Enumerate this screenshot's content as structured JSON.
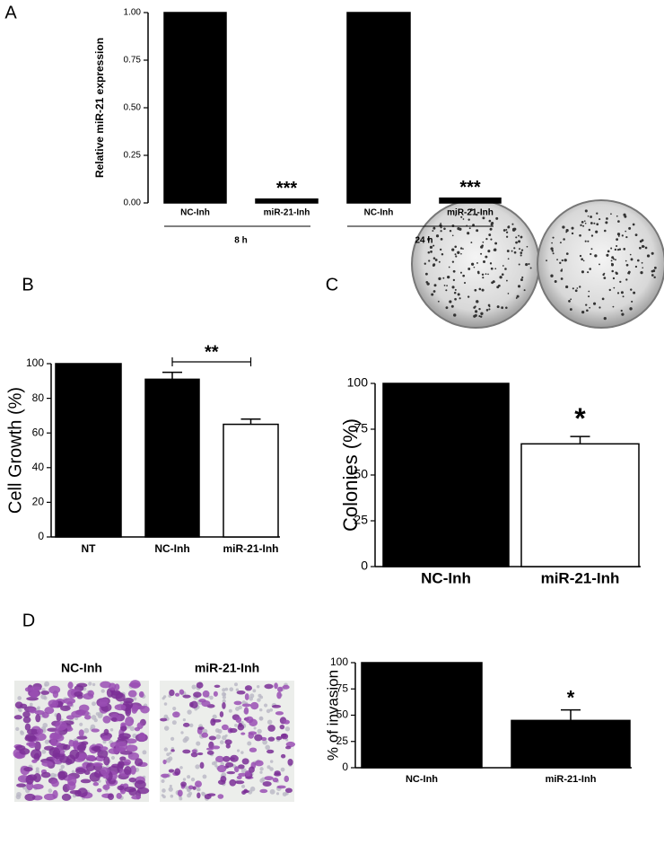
{
  "chart_data": [
    {
      "type": "bar",
      "panel": "A",
      "ylabel": "Relative miR-21 expression",
      "categories": [
        "NC-Inh",
        "miR-21-Inh",
        "NC-Inh",
        "miR-21-Inh"
      ],
      "groups": [
        "8 h",
        "24 h"
      ],
      "values": [
        1.0,
        0.02,
        1.0,
        0.025
      ],
      "colors": [
        "#000000",
        "#000000",
        "#000000",
        "#000000"
      ],
      "significance": [
        null,
        "***",
        null,
        "***"
      ],
      "ylim": [
        0,
        1.0
      ],
      "yticks": [
        {
          "value": 0,
          "label": "0.00"
        },
        {
          "value": 0.25,
          "label": "0.25"
        },
        {
          "value": 0.5,
          "label": "0.50"
        },
        {
          "value": 0.75,
          "label": "0.75"
        },
        {
          "value": 1.0,
          "label": "1.00"
        }
      ]
    },
    {
      "type": "bar",
      "panel": "B",
      "ylabel": "Cell Growth (%)",
      "categories": [
        "NT",
        "NC-Inh",
        "miR-21-Inh"
      ],
      "values": [
        100,
        91,
        65
      ],
      "errors": [
        0,
        4,
        3
      ],
      "colors": [
        "#000000",
        "#000000",
        "#ffffff"
      ],
      "significance": [
        null,
        null,
        "**"
      ],
      "ylim": [
        0,
        100
      ],
      "yticks": [
        0,
        20,
        40,
        60,
        80,
        100
      ]
    },
    {
      "type": "bar",
      "panel": "C",
      "ylabel": "Colonies (%)",
      "categories": [
        "NC-Inh",
        "miR-21-Inh"
      ],
      "values": [
        100,
        67
      ],
      "errors": [
        0,
        4
      ],
      "colors": [
        "#000000",
        "#ffffff"
      ],
      "significance": [
        null,
        "*"
      ],
      "ylim": [
        0,
        100
      ],
      "yticks": [
        0,
        25,
        50,
        75,
        100
      ]
    },
    {
      "type": "bar",
      "panel": "D",
      "ylabel": "% of invasion",
      "image_labels": [
        "NC-Inh",
        "miR-21-Inh"
      ],
      "categories": [
        "NC-Inh",
        "miR-21-Inh"
      ],
      "values": [
        100,
        45
      ],
      "errors": [
        0,
        10
      ],
      "colors": [
        "#000000",
        "#000000"
      ],
      "significance": [
        null,
        "*"
      ],
      "ylim": [
        0,
        100
      ],
      "yticks": [
        0,
        25,
        50,
        75,
        100
      ]
    }
  ]
}
